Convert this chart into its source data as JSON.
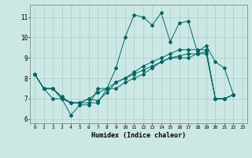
{
  "title": "",
  "xlabel": "Humidex (Indice chaleur)",
  "bg_color": "#cce8e4",
  "grid_color": "#aacccc",
  "line_color": "#006666",
  "xlim": [
    -0.5,
    23.5
  ],
  "ylim": [
    5.8,
    11.6
  ],
  "yticks": [
    6,
    7,
    8,
    9,
    10,
    11
  ],
  "xticks": [
    0,
    1,
    2,
    3,
    4,
    5,
    6,
    7,
    8,
    9,
    10,
    11,
    12,
    13,
    14,
    15,
    16,
    17,
    18,
    19,
    20,
    21,
    22,
    23
  ],
  "series": [
    [
      8.2,
      7.5,
      7.5,
      7.0,
      6.2,
      6.7,
      6.7,
      7.5,
      7.5,
      8.5,
      10.0,
      11.1,
      11.0,
      10.6,
      11.2,
      9.8,
      10.7,
      10.8,
      9.3,
      9.6,
      8.8,
      8.5,
      7.2,
      null
    ],
    [
      8.2,
      7.5,
      7.5,
      7.0,
      6.8,
      6.8,
      6.8,
      6.8,
      7.5,
      7.8,
      8.0,
      8.3,
      8.6,
      8.8,
      9.0,
      9.2,
      9.4,
      9.4,
      9.4,
      9.4,
      7.0,
      7.0,
      7.2,
      null
    ],
    [
      8.2,
      7.5,
      7.5,
      7.1,
      6.8,
      6.8,
      7.0,
      7.3,
      7.5,
      7.5,
      7.8,
      8.0,
      8.2,
      8.5,
      8.8,
      9.0,
      9.1,
      9.2,
      9.2,
      9.3,
      7.0,
      7.0,
      7.2,
      null
    ],
    [
      8.2,
      7.5,
      7.0,
      7.0,
      6.8,
      6.8,
      7.0,
      6.9,
      7.3,
      7.8,
      8.0,
      8.2,
      8.4,
      8.6,
      8.8,
      9.0,
      9.0,
      9.0,
      9.2,
      9.2,
      7.0,
      7.0,
      7.2,
      null
    ]
  ],
  "figsize": [
    3.2,
    2.0
  ],
  "dpi": 100
}
